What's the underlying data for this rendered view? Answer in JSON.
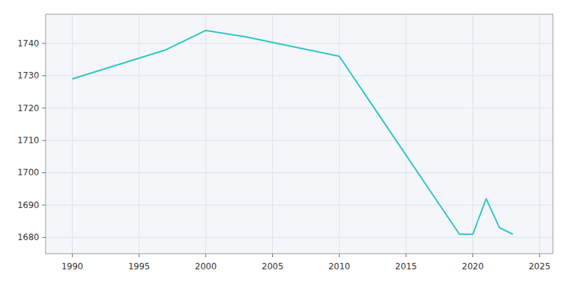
{
  "chart_data": {
    "type": "line",
    "x": [
      1990,
      1997,
      2000,
      2003,
      2010,
      2019,
      2020,
      2021,
      2022,
      2023
    ],
    "values": [
      1729,
      1738,
      1744,
      1742,
      1736,
      1681,
      1681,
      1692,
      1683,
      1681
    ],
    "color": "#2EC4C4",
    "xlim": [
      1988,
      2026
    ],
    "ylim": [
      1675,
      1749
    ],
    "xticks": [
      1990,
      1995,
      2000,
      2005,
      2010,
      2015,
      2020,
      2025
    ],
    "yticks": [
      1680,
      1690,
      1700,
      1710,
      1720,
      1730,
      1740
    ],
    "grid": true
  }
}
